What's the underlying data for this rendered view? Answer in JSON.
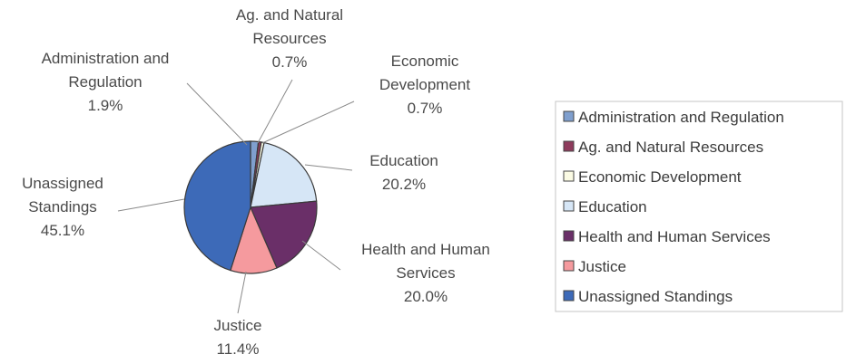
{
  "chart_data": {
    "type": "pie",
    "slices": [
      {
        "category": "Administration and Regulation",
        "value": 1.9,
        "label_lines": [
          "Administration and",
          "Regulation",
          "1.9%"
        ],
        "color": "#7f9fce"
      },
      {
        "category": "Ag. and Natural Resources",
        "value": 0.7,
        "label_lines": [
          "Ag. and Natural",
          "Resources",
          "0.7%"
        ],
        "color": "#8e3b5c"
      },
      {
        "category": "Economic Development",
        "value": 0.7,
        "label_lines": [
          "Economic",
          "Development",
          "0.7%"
        ],
        "color": "#fbfbe4"
      },
      {
        "category": "Education",
        "value": 20.2,
        "label_lines": [
          "Education",
          "20.2%"
        ],
        "color": "#d6e6f6"
      },
      {
        "category": "Health and Human Services",
        "value": 20.0,
        "label_lines": [
          "Health and Human",
          "Services",
          "20.0%"
        ],
        "color": "#6a2f68"
      },
      {
        "category": "Justice",
        "value": 11.4,
        "label_lines": [
          "Justice",
          "11.4%"
        ],
        "color": "#f59a9e"
      },
      {
        "category": "Unassigned Standings",
        "value": 45.1,
        "label_lines": [
          "Unassigned",
          "Standings",
          "45.1%"
        ],
        "color": "#3d6ab8"
      }
    ],
    "legend": {
      "placement": "right",
      "entries": [
        "Administration and Regulation",
        "Ag. and Natural Resources",
        "Economic Development",
        "Education",
        "Health and Human Services",
        "Justice",
        "Unassigned Standings"
      ]
    }
  }
}
